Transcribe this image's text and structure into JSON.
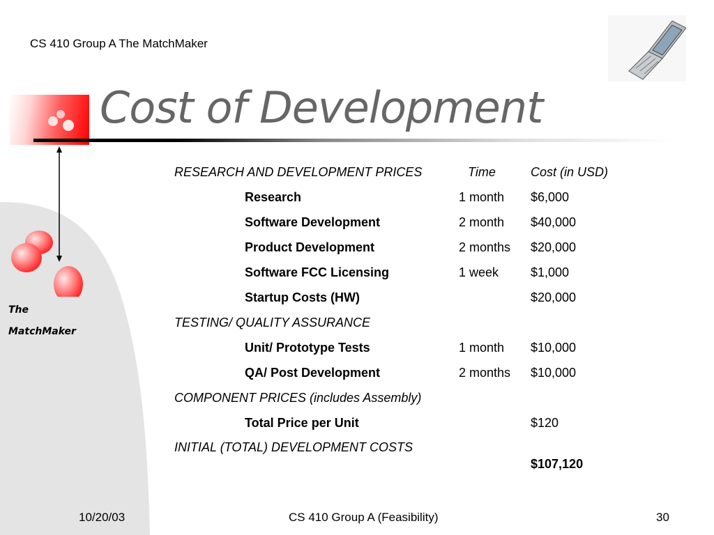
{
  "header": {
    "course": "CS 410 Group A The MatchMaker"
  },
  "title": "Cost of Development",
  "brand": {
    "line1": "The",
    "line2": "MatchMaker"
  },
  "table": {
    "head": {
      "label": "RESEARCH AND DEVELOPMENT PRICES",
      "time": "Time",
      "cost": "Cost (in USD)"
    },
    "rows": [
      {
        "label": "Research",
        "time": "1 month",
        "cost": "$6,000"
      },
      {
        "label": "Software Development",
        "time": "2 month",
        "cost": "$40,000"
      },
      {
        "label": "Product Development",
        "time": "2 months",
        "cost": "$20,000"
      },
      {
        "label": "Software FCC Licensing",
        "time": "1 week",
        "cost": "$1,000"
      },
      {
        "label": "Startup Costs (HW)",
        "time": "",
        "cost": "$20,000"
      }
    ],
    "testing": {
      "label": "TESTING/ QUALITY ASSURANCE",
      "rows": [
        {
          "label": "Unit/ Prototype Tests",
          "time": "1 month",
          "cost": "$10,000"
        },
        {
          "label": "QA/ Post Development",
          "time": "2 months",
          "cost": "$10,000"
        }
      ]
    },
    "components": {
      "label": "COMPONENT PRICES (includes Assembly)",
      "rows": [
        {
          "label": "Total Price per Unit",
          "time": "",
          "cost": "$120"
        }
      ]
    },
    "initial": {
      "label": "INITIAL (TOTAL) DEVELOPMENT COSTS",
      "total": "$107,120"
    }
  },
  "footer": {
    "date": "10/20/03",
    "center": "CS 410 Group A (Feasibility)",
    "page": "30"
  },
  "colors": {
    "accent_red": "#ff0000",
    "title_gray": "#666666",
    "side_gray": "#e4e4e4"
  }
}
